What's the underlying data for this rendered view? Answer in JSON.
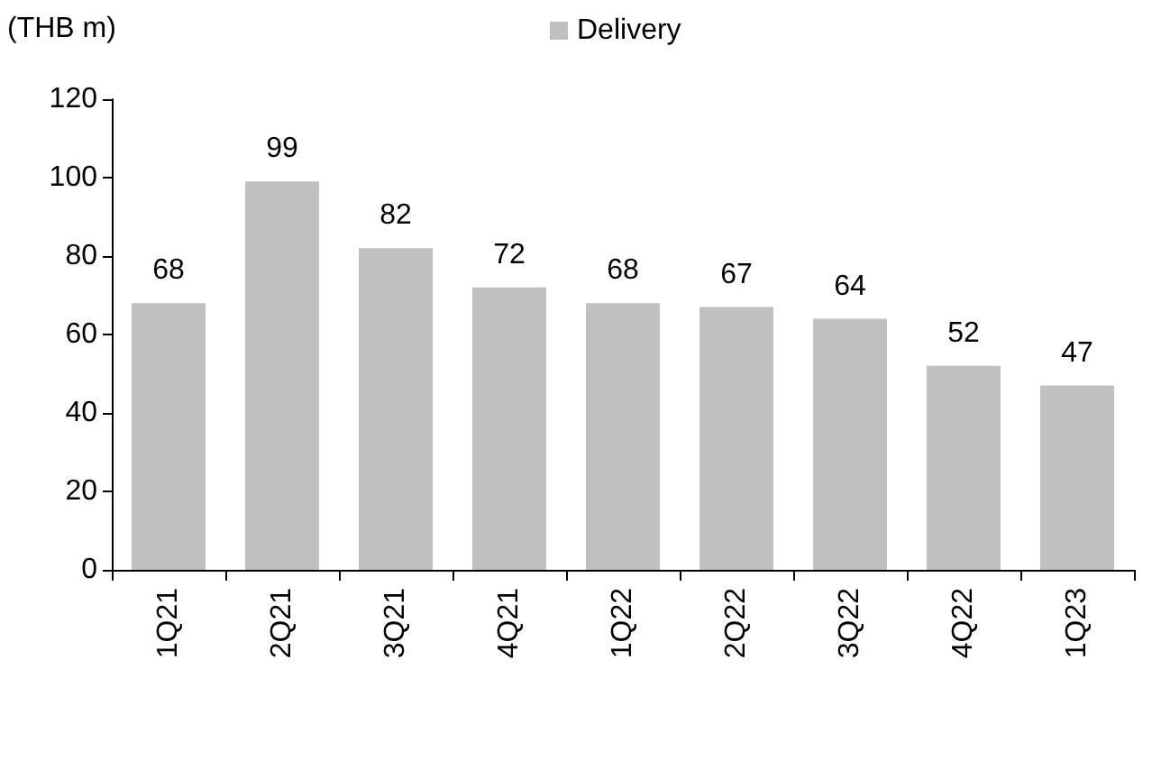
{
  "chart_data": {
    "type": "bar",
    "ylabel": "(THB m)",
    "categories": [
      "1Q21",
      "2Q21",
      "3Q21",
      "4Q21",
      "1Q22",
      "2Q22",
      "3Q22",
      "4Q22",
      "1Q23"
    ],
    "series": [
      {
        "name": "Delivery",
        "color": "#c0c0c0",
        "values": [
          68,
          99,
          82,
          72,
          68,
          67,
          64,
          52,
          47
        ]
      }
    ],
    "ylim": [
      0,
      120
    ],
    "yticks": [
      0,
      20,
      40,
      60,
      80,
      100,
      120
    ],
    "data_labels": true,
    "grid": false,
    "legend": "top"
  }
}
